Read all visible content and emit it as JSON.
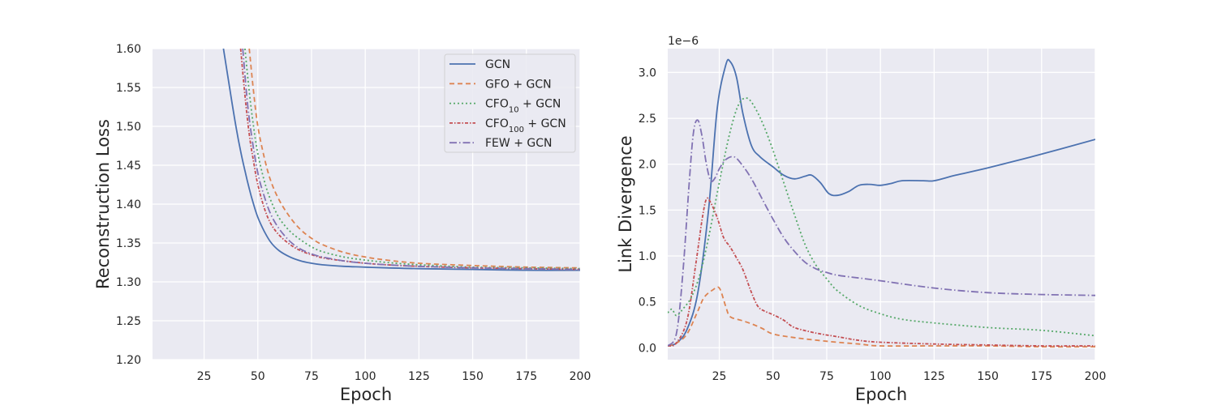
{
  "chart_data": [
    {
      "type": "line",
      "title": "",
      "xlabel": "Epoch",
      "ylabel": "Reconstruction Loss",
      "xlim": [
        1,
        200
      ],
      "ylim": [
        1.2,
        1.6
      ],
      "xticks": [
        25,
        50,
        75,
        100,
        125,
        150,
        175,
        200
      ],
      "xtick_labels": [
        "25",
        "50",
        "75",
        "100",
        "125",
        "150",
        "175",
        "200"
      ],
      "yticks": [
        1.2,
        1.25,
        1.3,
        1.35,
        1.4,
        1.45,
        1.5,
        1.55,
        1.6
      ],
      "ytick_labels": [
        "1.20",
        "1.25",
        "1.30",
        "1.35",
        "1.40",
        "1.45",
        "1.50",
        "1.55",
        "1.60"
      ],
      "legend": {
        "placement": "top-right",
        "entries": [
          {
            "base": "GCN",
            "sub": "",
            "rest": ""
          },
          {
            "base": "GFO + GCN",
            "sub": "",
            "rest": ""
          },
          {
            "base": "CFO",
            "sub": "10",
            "rest": " + GCN"
          },
          {
            "base": "CFO",
            "sub": "100",
            "rest": " + GCN"
          },
          {
            "base": "FEW + GCN",
            "sub": "",
            "rest": ""
          }
        ]
      },
      "series": [
        {
          "name": "GCN",
          "color": "#4c72b0",
          "dash": "solid",
          "x": [
            34,
            36,
            38,
            40,
            42,
            44,
            46,
            48,
            50,
            53,
            56,
            60,
            65,
            70,
            75,
            80,
            90,
            100,
            110,
            125,
            150,
            175,
            200
          ],
          "y": [
            1.6,
            1.565,
            1.53,
            1.497,
            1.468,
            1.443,
            1.42,
            1.4,
            1.383,
            1.365,
            1.351,
            1.34,
            1.332,
            1.327,
            1.324,
            1.322,
            1.32,
            1.319,
            1.318,
            1.317,
            1.316,
            1.315,
            1.315
          ]
        },
        {
          "name": "GFO + GCN",
          "color": "#dd8452",
          "dash": "6,4",
          "x": [
            46,
            48,
            50,
            53,
            56,
            60,
            65,
            70,
            75,
            80,
            90,
            100,
            110,
            125,
            150,
            175,
            200
          ],
          "y": [
            1.6,
            1.545,
            1.5,
            1.46,
            1.43,
            1.405,
            1.383,
            1.367,
            1.356,
            1.348,
            1.338,
            1.332,
            1.328,
            1.324,
            1.321,
            1.319,
            1.318
          ]
        },
        {
          "name": "CFO10 + GCN",
          "color": "#55a868",
          "dash": "2,3",
          "x": [
            44,
            46,
            48,
            50,
            53,
            56,
            60,
            65,
            70,
            75,
            80,
            90,
            100,
            110,
            125,
            150,
            175,
            200
          ],
          "y": [
            1.6,
            1.545,
            1.5,
            1.465,
            1.43,
            1.405,
            1.382,
            1.365,
            1.354,
            1.345,
            1.339,
            1.332,
            1.328,
            1.325,
            1.322,
            1.319,
            1.318,
            1.317
          ]
        },
        {
          "name": "CFO100 + GCN",
          "color": "#c44e52",
          "dash": "4,2,1.5,2",
          "x": [
            42,
            44,
            46,
            48,
            50,
            53,
            56,
            60,
            65,
            70,
            75,
            80,
            90,
            100,
            110,
            125,
            150,
            175,
            200
          ],
          "y": [
            1.6,
            1.54,
            1.49,
            1.455,
            1.425,
            1.395,
            1.375,
            1.36,
            1.348,
            1.34,
            1.335,
            1.331,
            1.327,
            1.324,
            1.322,
            1.32,
            1.318,
            1.317,
            1.316
          ]
        },
        {
          "name": "FEW + GCN",
          "color": "#8172b3",
          "dash": "9,3,1.5,3",
          "x": [
            43,
            45,
            47,
            50,
            53,
            56,
            60,
            65,
            70,
            75,
            80,
            90,
            100,
            110,
            125,
            150,
            175,
            200
          ],
          "y": [
            1.6,
            1.535,
            1.49,
            1.44,
            1.41,
            1.387,
            1.368,
            1.352,
            1.342,
            1.336,
            1.332,
            1.327,
            1.324,
            1.322,
            1.32,
            1.318,
            1.317,
            1.316
          ]
        }
      ]
    },
    {
      "type": "line",
      "title": "",
      "xlabel": "Epoch",
      "ylabel": "Link Divergence",
      "offset_text": "1e−6",
      "xlim": [
        1,
        200
      ],
      "ylim": [
        -0.13,
        3.26
      ],
      "xticks": [
        25,
        50,
        75,
        100,
        125,
        150,
        175,
        200
      ],
      "xtick_labels": [
        "25",
        "50",
        "75",
        "100",
        "125",
        "150",
        "175",
        "200"
      ],
      "yticks": [
        0,
        0.5,
        1,
        1.5,
        2,
        2.5,
        3
      ],
      "ytick_labels": [
        "0.0",
        "0.5",
        "1.0",
        "1.5",
        "2.0",
        "2.5",
        "3.0"
      ],
      "series": [
        {
          "name": "GCN",
          "color": "#4c72b0",
          "dash": "solid",
          "x": [
            1,
            5,
            10,
            15,
            20,
            24,
            28,
            30,
            33,
            36,
            40,
            44,
            50,
            55,
            60,
            65,
            68,
            72,
            76,
            80,
            85,
            90,
            95,
            100,
            105,
            110,
            120,
            125,
            135,
            150,
            175,
            200
          ],
          "y": [
            0.02,
            0.05,
            0.2,
            0.6,
            1.5,
            2.6,
            3.08,
            3.12,
            2.95,
            2.55,
            2.2,
            2.08,
            1.97,
            1.88,
            1.84,
            1.87,
            1.88,
            1.8,
            1.68,
            1.66,
            1.7,
            1.77,
            1.78,
            1.77,
            1.79,
            1.82,
            1.82,
            1.82,
            1.88,
            1.96,
            2.11,
            2.27
          ]
        },
        {
          "name": "GFO + GCN",
          "color": "#dd8452",
          "dash": "6,4",
          "x": [
            1,
            5,
            10,
            15,
            18,
            22,
            25,
            28,
            30,
            35,
            40,
            45,
            50,
            60,
            75,
            90,
            100,
            125,
            150,
            175,
            200
          ],
          "y": [
            0.02,
            0.05,
            0.15,
            0.4,
            0.55,
            0.63,
            0.65,
            0.45,
            0.34,
            0.3,
            0.26,
            0.21,
            0.15,
            0.11,
            0.07,
            0.04,
            0.02,
            0.02,
            0.02,
            0.01,
            0.01
          ]
        },
        {
          "name": "CFO10 + GCN",
          "color": "#55a868",
          "dash": "2,3",
          "x": [
            1,
            3,
            5,
            8,
            12,
            16,
            20,
            25,
            30,
            34,
            38,
            42,
            46,
            50,
            55,
            60,
            65,
            70,
            75,
            80,
            90,
            100,
            110,
            125,
            150,
            175,
            200
          ],
          "y": [
            0.38,
            0.42,
            0.35,
            0.42,
            0.55,
            0.8,
            1.2,
            1.8,
            2.35,
            2.65,
            2.72,
            2.6,
            2.4,
            2.15,
            1.8,
            1.45,
            1.12,
            0.9,
            0.75,
            0.62,
            0.46,
            0.37,
            0.31,
            0.27,
            0.22,
            0.19,
            0.13
          ]
        },
        {
          "name": "CFO100 + GCN",
          "color": "#c44e52",
          "dash": "4,2,1.5,2",
          "x": [
            1,
            5,
            10,
            14,
            17,
            19,
            21,
            24,
            27,
            30,
            33,
            36,
            40,
            43,
            46,
            50,
            55,
            60,
            70,
            80,
            90,
            100,
            125,
            150,
            175,
            200
          ],
          "y": [
            0.02,
            0.05,
            0.3,
            0.9,
            1.4,
            1.62,
            1.58,
            1.42,
            1.2,
            1.1,
            0.98,
            0.85,
            0.6,
            0.45,
            0.4,
            0.36,
            0.3,
            0.22,
            0.16,
            0.12,
            0.08,
            0.06,
            0.04,
            0.03,
            0.02,
            0.02
          ]
        },
        {
          "name": "FEW + GCN",
          "color": "#8172b3",
          "dash": "9,3,1.5,3",
          "x": [
            1,
            5,
            8,
            11,
            13,
            15,
            17,
            19,
            21,
            23,
            25,
            28,
            32,
            36,
            40,
            45,
            50,
            55,
            60,
            65,
            70,
            75,
            80,
            90,
            100,
            125,
            150,
            175,
            200
          ],
          "y": [
            0.02,
            0.15,
            0.8,
            1.8,
            2.35,
            2.48,
            2.3,
            2.0,
            1.82,
            1.85,
            1.95,
            2.05,
            2.08,
            1.98,
            1.84,
            1.62,
            1.4,
            1.2,
            1.05,
            0.93,
            0.86,
            0.82,
            0.79,
            0.76,
            0.73,
            0.65,
            0.6,
            0.58,
            0.57
          ]
        }
      ]
    }
  ]
}
